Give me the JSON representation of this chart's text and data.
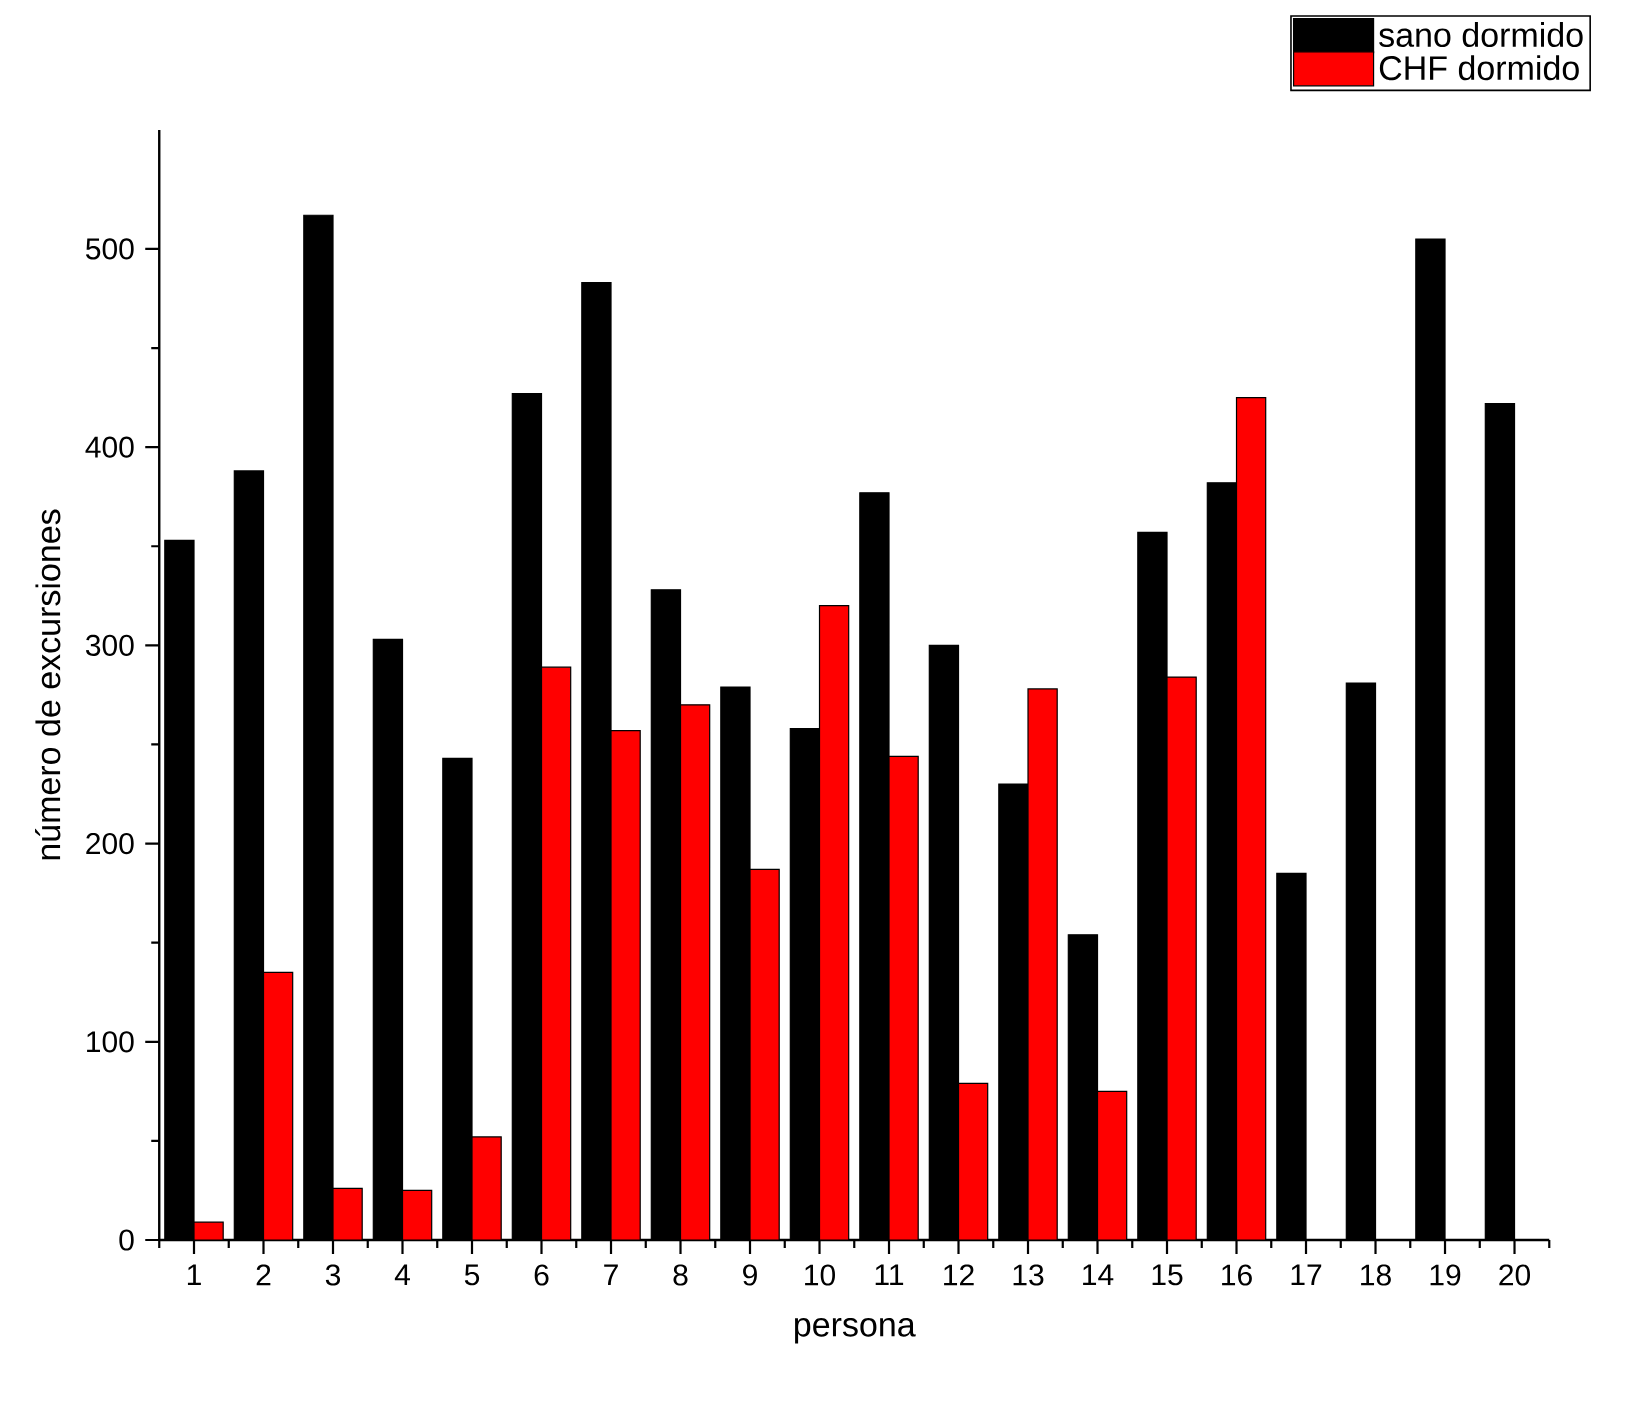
{
  "chart_data": {
    "type": "bar",
    "xlabel": "persona",
    "ylabel": "número de excursiones",
    "categories": [
      "1",
      "2",
      "3",
      "4",
      "5",
      "6",
      "7",
      "8",
      "9",
      "10",
      "11",
      "12",
      "13",
      "14",
      "15",
      "16",
      "17",
      "18",
      "19",
      "20"
    ],
    "series": [
      {
        "name": "sano dormido",
        "color": "#000000",
        "values": [
          353,
          388,
          517,
          303,
          243,
          427,
          483,
          328,
          279,
          258,
          377,
          300,
          230,
          154,
          357,
          382,
          185,
          281,
          505,
          422
        ]
      },
      {
        "name": "CHF dormido",
        "color": "#ff0000",
        "values": [
          9,
          135,
          26,
          25,
          52,
          289,
          257,
          270,
          187,
          320,
          244,
          79,
          278,
          75,
          284,
          425,
          null,
          null,
          null,
          null
        ]
      }
    ],
    "ylim": [
      0,
      560
    ],
    "yticks": [
      0,
      100,
      200,
      300,
      400,
      500
    ],
    "grid": false,
    "legend": "top right"
  }
}
